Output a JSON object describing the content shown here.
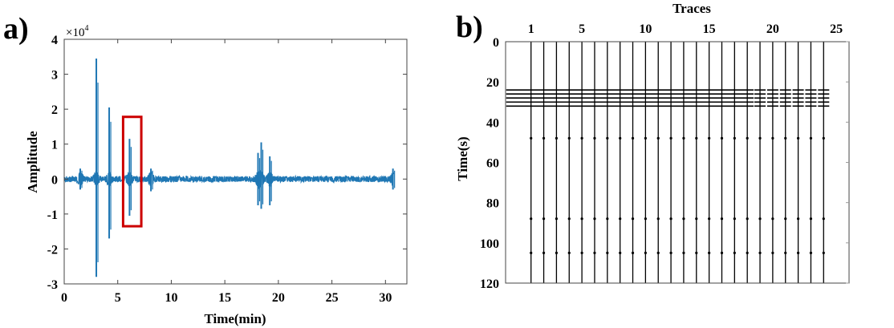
{
  "chart_data": [
    {
      "panel_label": "a)",
      "type": "line",
      "xlabel": "Time(min)",
      "ylabel": "Amplitude",
      "y_multiplier": "×10",
      "y_multiplier_exp": "4",
      "xlim": [
        0,
        32
      ],
      "ylim": [
        -3,
        4
      ],
      "xticks": [
        0,
        5,
        10,
        15,
        20,
        25,
        30
      ],
      "yticks": [
        -3,
        -2,
        -1,
        0,
        1,
        2,
        3,
        4
      ],
      "grid": false,
      "series_color": "#1f77b4",
      "baseline_noise": 0.06,
      "bursts": [
        {
          "x": 1.5,
          "max": 0.3,
          "min": -0.3
        },
        {
          "x": 3.0,
          "max": 3.45,
          "min": -2.8
        },
        {
          "x": 4.2,
          "max": 2.05,
          "min": -1.7
        },
        {
          "x": 6.1,
          "max": 1.15,
          "min": -1.05
        },
        {
          "x": 8.1,
          "max": 0.3,
          "min": -0.35
        },
        {
          "x": 18.1,
          "max": 0.75,
          "min": -0.75
        },
        {
          "x": 18.4,
          "max": 1.05,
          "min": -0.85
        },
        {
          "x": 19.2,
          "max": 0.65,
          "min": -0.75
        },
        {
          "x": 30.7,
          "max": 0.3,
          "min": -0.3
        }
      ],
      "highlight_box": {
        "x": [
          5.5,
          7.2
        ],
        "y": [
          -1.35,
          1.78
        ],
        "color": "#cc0000"
      }
    },
    {
      "panel_label": "b)",
      "type": "scatter",
      "title": "Traces",
      "ylabel": "Time(s)",
      "xlim": [
        -1,
        26
      ],
      "ylim": [
        0,
        120
      ],
      "y_inverted": true,
      "xaxis_position": "top",
      "xticks": [
        1,
        5,
        10,
        15,
        20,
        25
      ],
      "yticks": [
        0,
        20,
        40,
        60,
        80,
        100,
        120
      ],
      "traces": [
        1,
        2,
        3,
        4,
        5,
        6,
        7,
        8,
        9,
        10,
        11,
        12,
        13,
        14,
        15,
        16,
        17,
        18,
        19,
        20,
        21,
        22,
        23,
        24
      ],
      "arrival_band_times": [
        24,
        26,
        28,
        30,
        32
      ],
      "event_times": [
        48,
        88,
        105
      ],
      "color": "#000000"
    }
  ]
}
